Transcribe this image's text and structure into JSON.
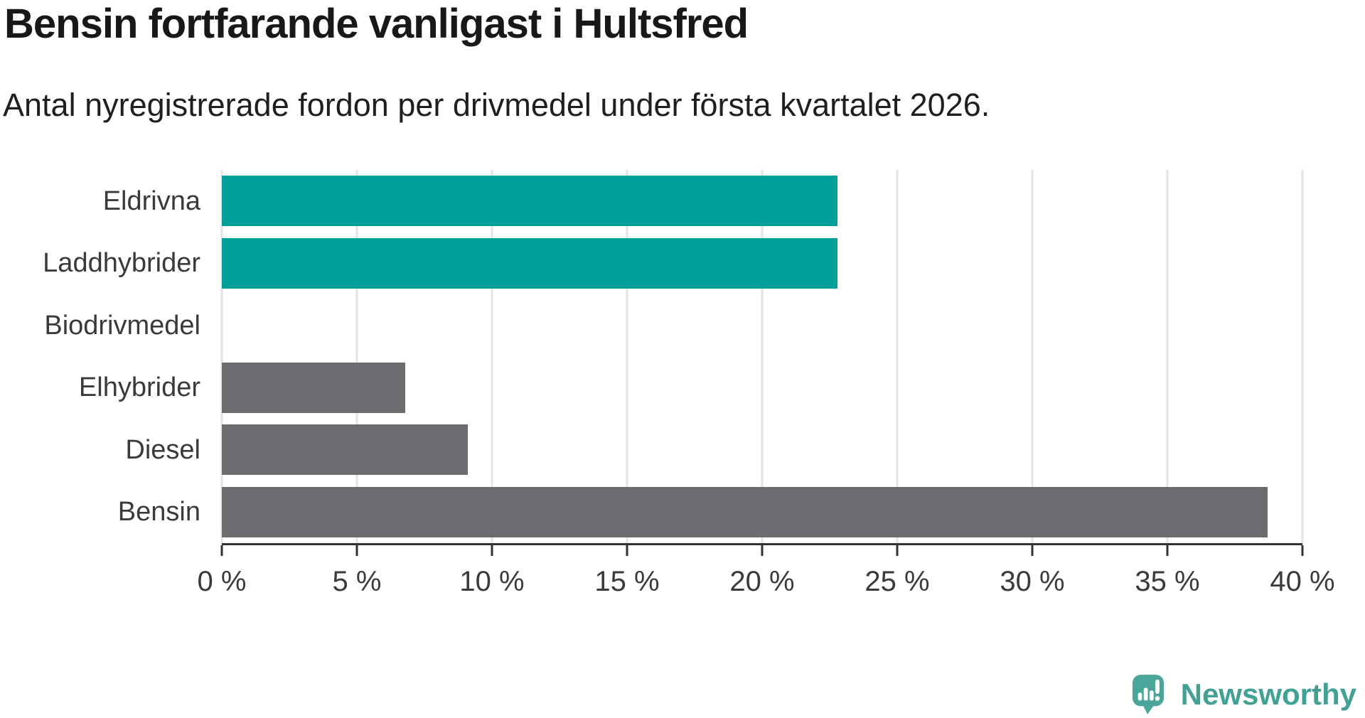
{
  "header": {
    "title": "Bensin fortfarande vanligast i Hultsfred",
    "subtitle": "Antal nyregistrerade fordon per drivmedel under första kvartalet 2026."
  },
  "chart_data": {
    "type": "bar",
    "orientation": "horizontal",
    "title": "Bensin fortfarande vanligast i Hultsfred",
    "subtitle": "Antal nyregistrerade fordon per drivmedel under första kvartalet 2026.",
    "categories": [
      "Eldrivna",
      "Laddhybrider",
      "Biodrivmedel",
      "Elhybrider",
      "Diesel",
      "Bensin"
    ],
    "values": [
      22.8,
      22.8,
      0,
      6.8,
      9.1,
      38.7
    ],
    "unit": "%",
    "xlim": [
      0,
      40
    ],
    "xticks": [
      0,
      5,
      10,
      15,
      20,
      25,
      30,
      35,
      40
    ],
    "xtick_labels": [
      "0 %",
      "5 %",
      "10 %",
      "15 %",
      "20 %",
      "25 %",
      "30 %",
      "35 %",
      "40 %"
    ],
    "bar_colors": [
      "#00a099",
      "#00a099",
      "#00a099",
      "#6b6b70",
      "#6b6b70",
      "#6b6b70"
    ],
    "grid": true,
    "legend_position": "none",
    "xlabel": "",
    "ylabel": ""
  },
  "palette": {
    "highlight_teal": "#00a099",
    "neutral_gray": "#6b6b70",
    "gridline": "#e4e4e4",
    "axis": "#333333",
    "title_text": "#181818",
    "label_text": "#3a3a3a",
    "logo_teal": "#42a195"
  },
  "branding": {
    "logo_text": "Newsworthy"
  }
}
